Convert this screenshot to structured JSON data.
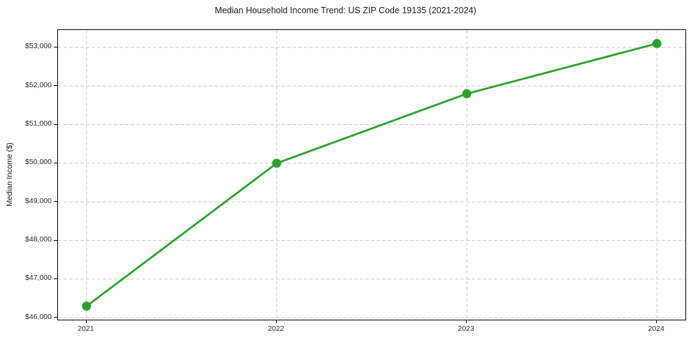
{
  "chart_data": {
    "type": "line",
    "title": "Median Household Income Trend: US ZIP Code 19135 (2021-2024)",
    "xlabel": "",
    "ylabel": "Median Income ($)",
    "x": [
      2021,
      2022,
      2023,
      2024
    ],
    "values": [
      46300,
      50000,
      51800,
      53100
    ],
    "xticks": {
      "values": [
        2021,
        2022,
        2023,
        2024
      ],
      "labels": [
        "2021",
        "2022",
        "2023",
        "2024"
      ]
    },
    "yticks": {
      "values": [
        46000,
        47000,
        48000,
        49000,
        50000,
        51000,
        52000,
        53000
      ],
      "labels": [
        "$46,000",
        "$47,000",
        "$48,000",
        "$49,000",
        "$50,000",
        "$51,000",
        "$52,000",
        "$53,000"
      ]
    },
    "xlim": [
      2020.85,
      2024.15
    ],
    "ylim": [
      45950,
      53450
    ],
    "line_color": "#2ca02c",
    "marker": "circle-filled",
    "marker_radius": 6.5,
    "line_width": 2.8,
    "grid": {
      "visible": true,
      "color": "#cccccc",
      "style": "dashed"
    },
    "legend": "none",
    "background_color": "#ffffff",
    "spine_color": "#000000"
  }
}
